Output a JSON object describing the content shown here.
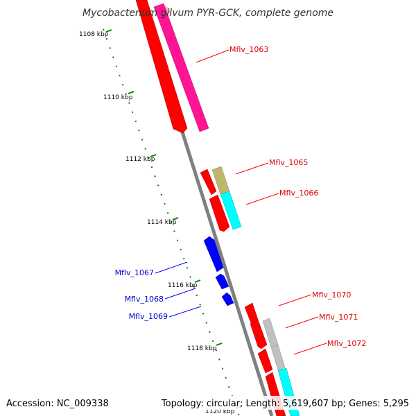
{
  "title": "Mycobacterium gilvum PYR-GCK, complete genome",
  "accession": "Accession: NC_009338",
  "summary": "Topology: circular; Length: 5,619,607 bp; Genes: 5,295",
  "ticks": [
    {
      "label": "1108 kbp"
    },
    {
      "label": "1110 kbp"
    },
    {
      "label": "1112 kbp"
    },
    {
      "label": "1114 kbp"
    },
    {
      "label": "1116 kbp"
    },
    {
      "label": "1118 kbp"
    },
    {
      "label": "1120 kbp"
    }
  ],
  "gene_labels": {
    "forward": [
      "Mflv_1063",
      "Mflv_1065",
      "Mflv_1066",
      "Mflv_1070",
      "Mflv_1071",
      "Mflv_1072"
    ],
    "reverse": [
      "Mflv_1067",
      "Mflv_1068",
      "Mflv_1069"
    ]
  },
  "colors": {
    "forward_cds": "#ff0000",
    "reverse_cds": "#0000ff",
    "backbone": "#808080",
    "ticks": "#008000",
    "cog_pink": "#ff1493",
    "cog_khaki": "#bdb76b",
    "cog_cyan": "#00ffff",
    "cog_gray": "#c0c0c0"
  }
}
